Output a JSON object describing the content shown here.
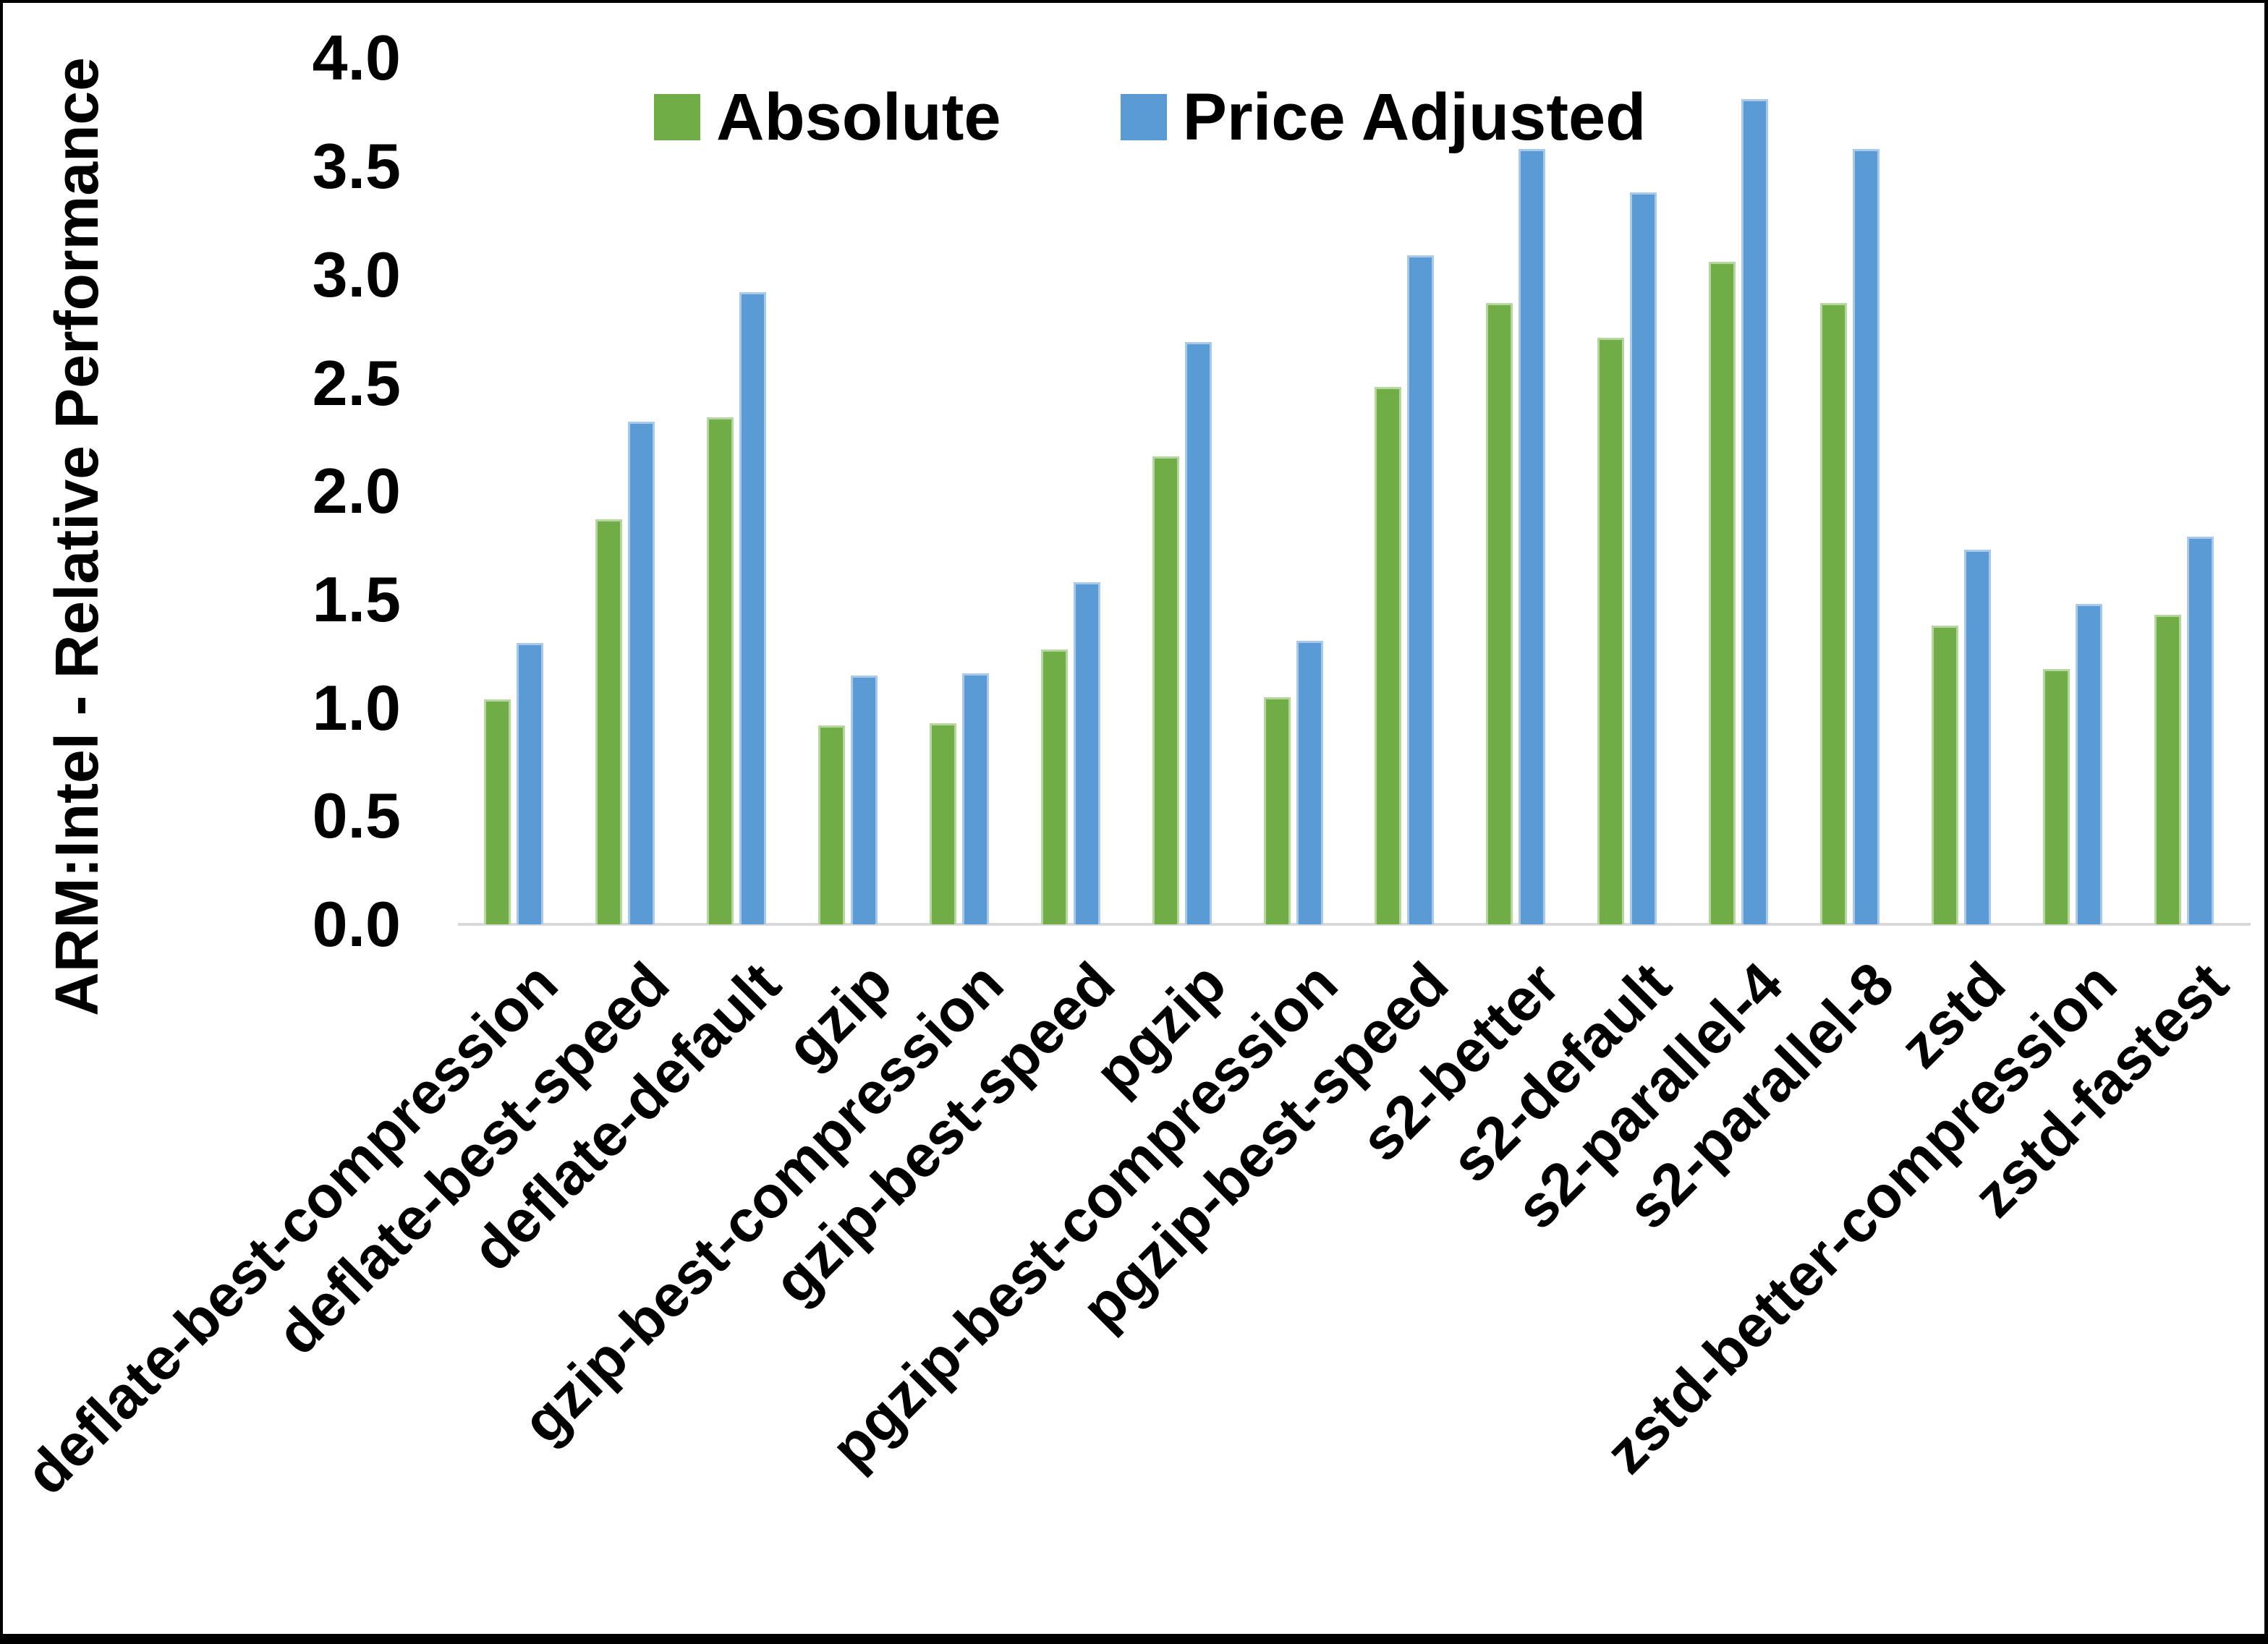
{
  "chart_data": {
    "type": "bar",
    "title": "",
    "ylabel": "ARM:Intel - Relative Performance",
    "xlabel": "",
    "ylim": [
      0.0,
      4.0
    ],
    "ytick_step": 0.5,
    "yticks": [
      "0.0",
      "0.5",
      "1.0",
      "1.5",
      "2.0",
      "2.5",
      "3.0",
      "3.5",
      "4.0"
    ],
    "grid": false,
    "legend_position": "top-center",
    "background_color": "#FFFFFF",
    "frame_border_color": "#000000",
    "axis_line_color": "#D9D9D9",
    "categories": [
      "deflate-best-compression",
      "deflate-best-speed",
      "deflate-default",
      "gzip",
      "gzip-best-compression",
      "gzip-best-speed",
      "pgzip",
      "pgzip-best-compression",
      "pgzip-best-speed",
      "s2-better",
      "s2-default",
      "s2-parallel-4",
      "s2-parallel-8",
      "zstd",
      "zstd-better-compression",
      "zstd-fastest"
    ],
    "series": [
      {
        "name": "Absolute",
        "color": "#70AD47",
        "edge_color": "#B5D69C",
        "values": [
          1.04,
          1.87,
          2.34,
          0.92,
          0.93,
          1.27,
          2.16,
          1.05,
          2.48,
          2.87,
          2.71,
          3.06,
          2.87,
          1.38,
          1.18,
          1.43
        ]
      },
      {
        "name": "Price Adjusted",
        "color": "#5B9BD5",
        "edge_color": "#A9C9EA",
        "values": [
          1.3,
          2.32,
          2.92,
          1.15,
          1.16,
          1.58,
          2.69,
          1.31,
          3.09,
          3.58,
          3.38,
          3.81,
          3.58,
          1.73,
          1.48,
          1.79
        ]
      }
    ]
  }
}
